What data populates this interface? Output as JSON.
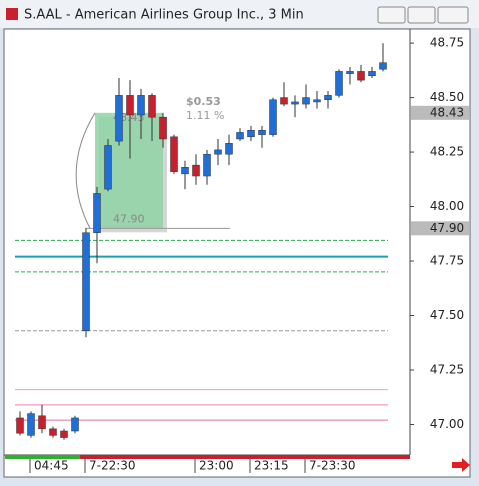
{
  "chart_data": {
    "type": "candlestick",
    "title": "S.AAL - American Airlines Group Inc., 3 Min",
    "categories": [
      null,
      "04:45",
      null,
      null,
      null,
      null,
      "7-22:30",
      null,
      null,
      null,
      null,
      null,
      null,
      null,
      null,
      null,
      "23:00",
      null,
      null,
      null,
      null,
      "23:15",
      null,
      null,
      null,
      null,
      "7-23:30",
      null,
      null,
      null,
      null,
      null,
      null,
      null
    ],
    "open": [
      47.03,
      46.95,
      47.04,
      46.98,
      46.97,
      46.97,
      47.43,
      47.88,
      48.08,
      48.3,
      48.51,
      48.42,
      48.51,
      48.41,
      48.32,
      48.15,
      48.19,
      48.14,
      48.24,
      48.24,
      48.31,
      48.32,
      48.33,
      48.33,
      48.5,
      48.47,
      48.47,
      48.48,
      48.49,
      48.51,
      48.61,
      48.62,
      48.6,
      48.63
    ],
    "high": [
      47.06,
      47.06,
      47.09,
      46.99,
      46.98,
      47.04,
      47.9,
      48.09,
      48.31,
      48.59,
      48.58,
      48.54,
      48.52,
      48.43,
      48.33,
      48.21,
      48.24,
      48.26,
      48.31,
      48.33,
      48.36,
      48.37,
      48.37,
      48.5,
      48.57,
      48.51,
      48.56,
      48.53,
      48.53,
      48.63,
      48.64,
      48.65,
      48.64,
      48.75
    ],
    "low": [
      46.95,
      46.94,
      46.96,
      46.94,
      46.93,
      46.96,
      47.4,
      47.74,
      48.07,
      48.28,
      48.22,
      48.31,
      48.3,
      48.27,
      48.15,
      48.08,
      48.1,
      48.1,
      48.19,
      48.19,
      48.3,
      48.3,
      48.27,
      48.32,
      48.46,
      48.41,
      48.45,
      48.45,
      48.45,
      48.5,
      48.56,
      48.57,
      48.59,
      48.62
    ],
    "close": [
      46.96,
      47.05,
      46.98,
      46.95,
      46.94,
      47.03,
      47.88,
      48.06,
      48.28,
      48.51,
      48.42,
      48.51,
      48.41,
      48.31,
      48.16,
      48.18,
      48.14,
      48.24,
      48.26,
      48.29,
      48.34,
      48.35,
      48.35,
      48.49,
      48.47,
      48.48,
      48.5,
      48.49,
      48.51,
      48.62,
      48.62,
      48.58,
      48.62,
      48.66
    ],
    "up_color": "#1f6fd6",
    "down_color": "#c8202c",
    "ylim": [
      46.86,
      48.81
    ],
    "yticks": [
      {
        "value": 48.75,
        "label": "48.75"
      },
      {
        "value": 48.5,
        "label": "48.50"
      },
      {
        "value": 48.25,
        "label": "48.25"
      },
      {
        "value": 48,
        "label": "48.00"
      },
      {
        "value": 47.75,
        "label": "47.75"
      },
      {
        "value": 47.5,
        "label": "47.50"
      },
      {
        "value": 47.25,
        "label": "47.25"
      },
      {
        "value": 47,
        "label": "47.00"
      }
    ],
    "levels": [
      {
        "value": 47.845,
        "color": "#2fa84f",
        "style": "dashed"
      },
      {
        "value": 47.77,
        "color": "#1aa0a8",
        "style": "solid"
      },
      {
        "value": 47.7,
        "color": "#2fa84f",
        "style": "dashed"
      },
      {
        "value": 47.43,
        "color": "#999999",
        "style": "dashed"
      },
      {
        "value": 47.16,
        "color": "#f0a0c0",
        "style": "solid"
      },
      {
        "value": 47.09,
        "color": "#f080b0",
        "style": "solid"
      },
      {
        "value": 47.02,
        "color": "#e070a0",
        "style": "solid"
      }
    ],
    "price_markers": [
      {
        "value": 48.43,
        "label": "48.43"
      },
      {
        "value": 47.9,
        "label": "47.90"
      }
    ],
    "measure": {
      "from": 47.9,
      "to": 48.43,
      "from_label": "47.90",
      "to_label": "48.43",
      "change_label": "$0.53",
      "percent_label": "1.11 %"
    }
  }
}
